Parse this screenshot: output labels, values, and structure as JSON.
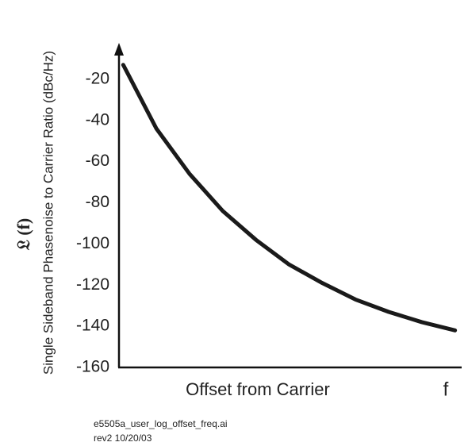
{
  "chart_data": {
    "type": "line",
    "ylabel_symbol": "𝔏 (f)",
    "ylabel": "Single Sideband Phasenoise to Carrier Ratio (dBc/Hz)",
    "xlabel": "Offset from Carrier",
    "xlabel_end": "f",
    "x": [
      0,
      1,
      2,
      3,
      4,
      5,
      6,
      7,
      8,
      9,
      10
    ],
    "series": [
      {
        "color": "#1a1a1a",
        "values": [
          -13,
          -44,
          -66,
          -84,
          -98,
          -110,
          -119,
          -127,
          -133,
          -138,
          -142
        ]
      }
    ],
    "xlim": [
      -0.2,
      10.2
    ],
    "ylim": [
      -160,
      -5
    ],
    "yticks": [
      -160,
      -140,
      -120,
      -100,
      -80,
      -60,
      -40,
      -20
    ],
    "grid": false,
    "footer": [
      "e5505a_user_log_offset_freq.ai",
      "rev2 10/20/03"
    ]
  }
}
